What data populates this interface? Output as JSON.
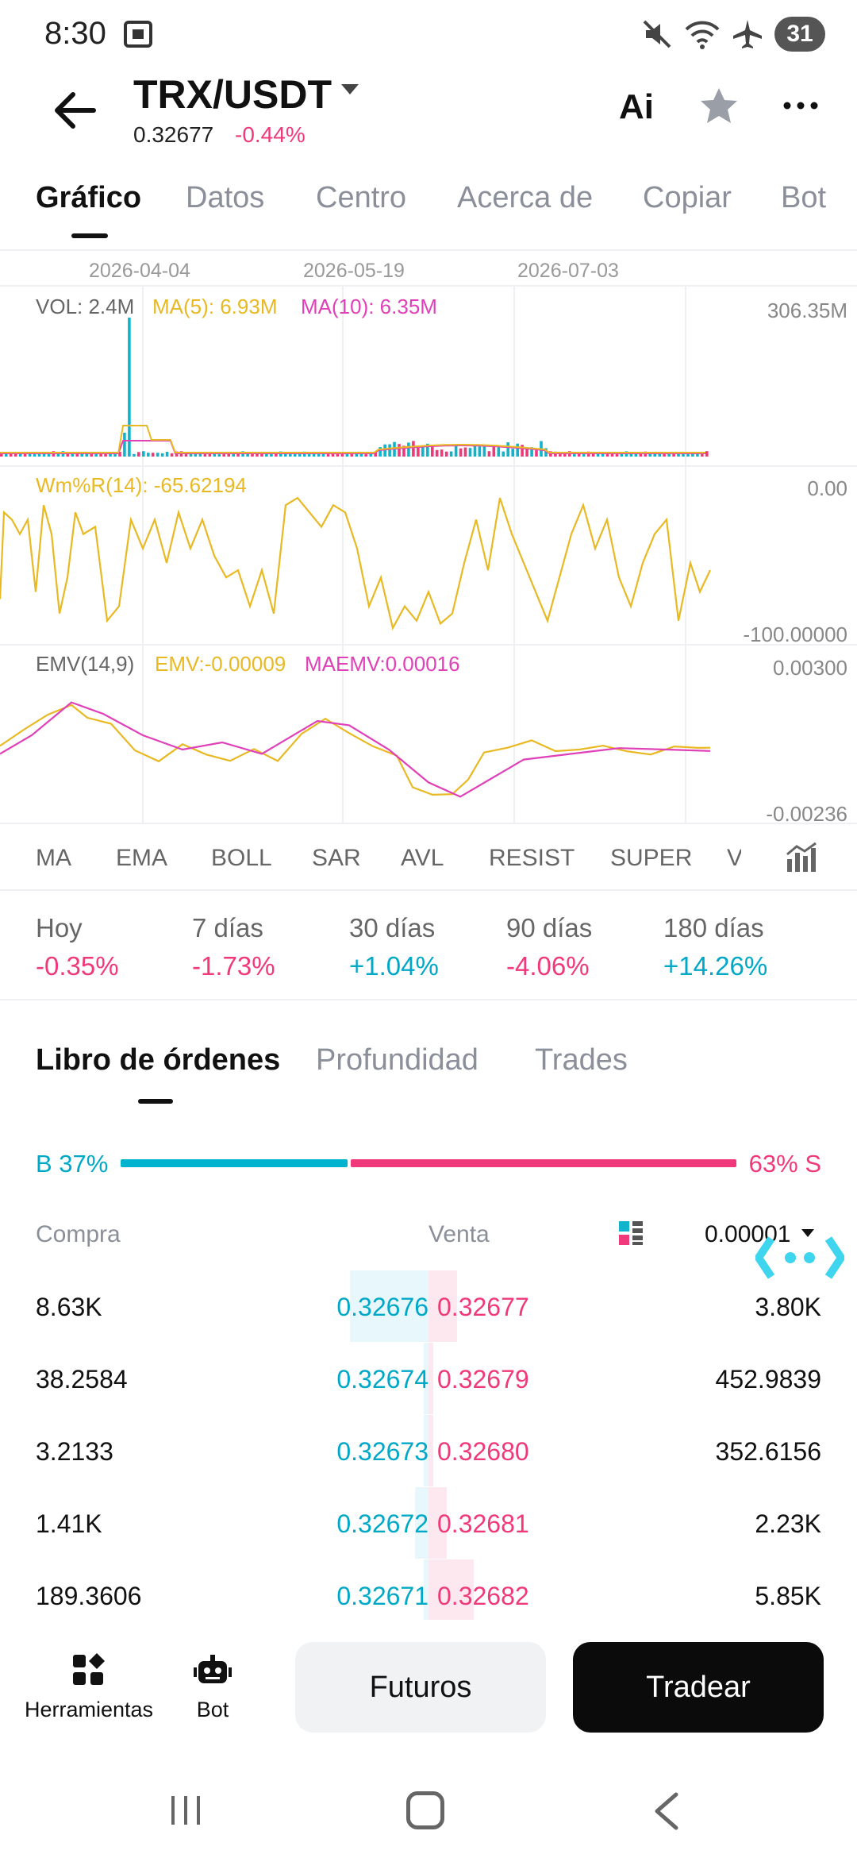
{
  "status_bar": {
    "time": "8:30",
    "battery": "31",
    "icons": [
      "screenshot-icon",
      "mute-icon",
      "wifi-icon",
      "airplane-icon",
      "battery-icon"
    ]
  },
  "header": {
    "pair": "TRX/USDT",
    "price": "0.32677",
    "change": "-0.44%",
    "ai_label": "Ai"
  },
  "tabs": [
    {
      "label": "Gráfico",
      "active": true
    },
    {
      "label": "Datos"
    },
    {
      "label": "Centro"
    },
    {
      "label": "Acerca de"
    },
    {
      "label": "Copiar"
    },
    {
      "label": "Bot"
    }
  ],
  "chart": {
    "dates": [
      "2026-04-04",
      "2026-05-19",
      "2026-07-03"
    ],
    "volume": {
      "label": "VOL: 2.4M",
      "ma5": "MA(5): 6.93M",
      "ma10": "MA(10): 6.35M",
      "axis_max": "306.35M"
    },
    "wmr": {
      "label": "Wm%R(14): -65.62194",
      "axis_top": "0.00",
      "axis_bottom": "-100.00000"
    },
    "emv": {
      "label": "EMV(14,9)",
      "emv": "EMV:-0.00009",
      "maemv": "MAEMV:0.00016",
      "axis_top": "0.00300",
      "axis_bottom": "-0.00236"
    },
    "colors": {
      "yellow": "#e8b923",
      "magenta": "#e040b8",
      "cyan": "#10b4cc",
      "pink": "#f0397a"
    }
  },
  "indicators": [
    "MA",
    "EMA",
    "BOLL",
    "SAR",
    "AVL",
    "RESIST",
    "SUPER",
    "V"
  ],
  "periods": [
    {
      "label": "Hoy",
      "value": "-0.35%",
      "dir": "neg"
    },
    {
      "label": "7 días",
      "value": "-1.73%",
      "dir": "neg"
    },
    {
      "label": "30 días",
      "value": "+1.04%",
      "dir": "pos"
    },
    {
      "label": "90 días",
      "value": "-4.06%",
      "dir": "neg"
    },
    {
      "label": "180 días",
      "value": "+14.26%",
      "dir": "pos"
    }
  ],
  "orderbook_tabs": [
    {
      "label": "Libro de órdenes",
      "active": true
    },
    {
      "label": "Profundidad"
    },
    {
      "label": "Trades"
    }
  ],
  "ratio": {
    "buy_label": "B 37%",
    "sell_label": "63% S",
    "buy_fraction": 0.37
  },
  "orderbook_head": {
    "buy": "Compra",
    "sell": "Venta",
    "tick": "0.00001"
  },
  "orderbook_rows": [
    {
      "buy_qty": "8.63K",
      "buy_price": "0.32676",
      "sell_price": "0.32677",
      "sell_qty": "3.80K",
      "buy_depth": 0.66,
      "sell_depth": 0.24
    },
    {
      "buy_qty": "38.2584",
      "buy_price": "0.32674",
      "sell_price": "0.32679",
      "sell_qty": "452.9839",
      "buy_depth": 0.02,
      "sell_depth": 0.04
    },
    {
      "buy_qty": "3.2133",
      "buy_price": "0.32673",
      "sell_price": "0.32680",
      "sell_qty": "352.6156",
      "buy_depth": 0.01,
      "sell_depth": 0.03
    },
    {
      "buy_qty": "1.41K",
      "buy_price": "0.32672",
      "sell_price": "0.32681",
      "sell_qty": "2.23K",
      "buy_depth": 0.11,
      "sell_depth": 0.15
    },
    {
      "buy_qty": "189.3606",
      "buy_price": "0.32671",
      "sell_price": "0.32682",
      "sell_qty": "5.85K",
      "buy_depth": 0.02,
      "sell_depth": 0.38
    }
  ],
  "bottom_bar": {
    "tools_label": "Herramientas",
    "bot_label": "Bot",
    "futures_label": "Futuros",
    "trade_label": "Tradear"
  }
}
